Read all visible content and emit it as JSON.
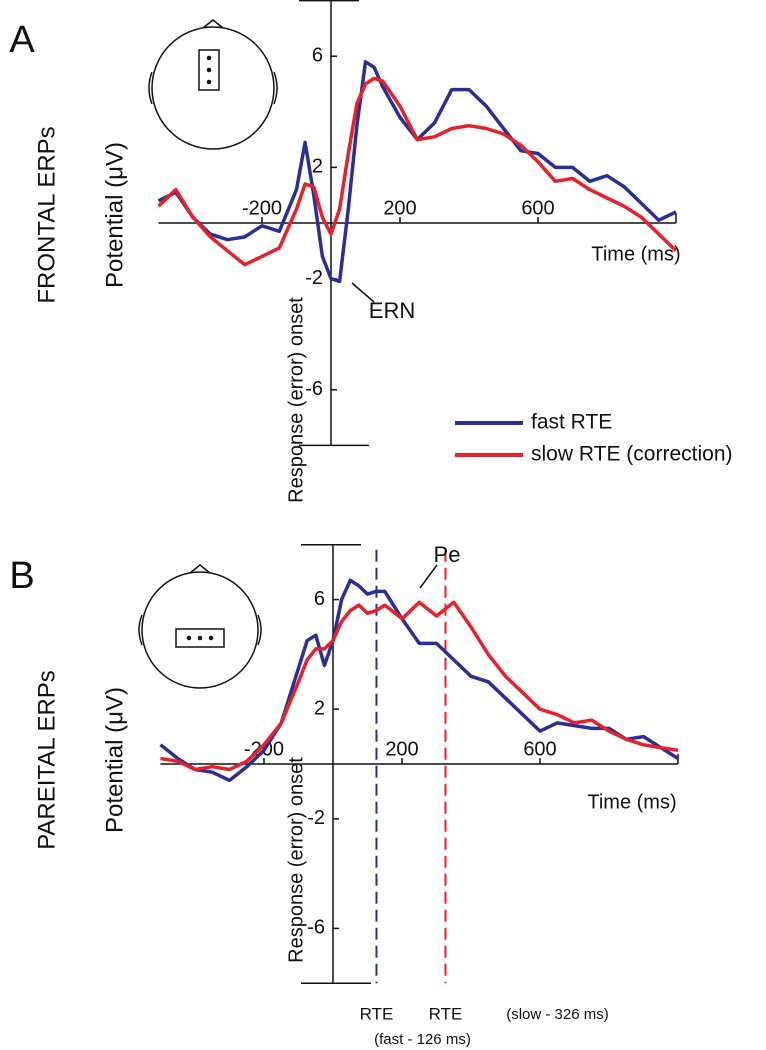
{
  "chart_data": [
    {
      "type": "line",
      "panel": "A",
      "title": "FRONTAL ERPs",
      "ylabel": "Potential (μV)",
      "xlabel": "Time (ms)",
      "onset_label": "Response (error) onset",
      "x": [
        -500,
        -450,
        -400,
        -350,
        -300,
        -250,
        -200,
        -150,
        -100,
        -75,
        -50,
        -25,
        0,
        25,
        50,
        75,
        100,
        125,
        150,
        200,
        250,
        300,
        350,
        400,
        450,
        500,
        550,
        600,
        650,
        700,
        750,
        800,
        850,
        900,
        950,
        1000
      ],
      "series": [
        {
          "name": "fast RTE",
          "color": "#2b2e97",
          "values": [
            0.8,
            1.1,
            0.2,
            -0.4,
            -0.6,
            -0.5,
            -0.1,
            -0.3,
            1.2,
            2.9,
            1.0,
            -1.2,
            -2.0,
            -2.1,
            0.5,
            3.5,
            5.8,
            5.6,
            4.9,
            3.8,
            3.0,
            3.6,
            4.8,
            4.8,
            4.2,
            3.4,
            2.6,
            2.5,
            2.0,
            2.0,
            1.5,
            1.7,
            1.3,
            0.7,
            0.1,
            0.4
          ]
        },
        {
          "name": "slow RTE (correction)",
          "color": "#e8202a",
          "values": [
            0.6,
            1.2,
            0.2,
            -0.5,
            -1.0,
            -1.5,
            -1.2,
            -0.9,
            0.5,
            1.4,
            1.3,
            0.2,
            -0.4,
            0.5,
            2.5,
            4.3,
            5.0,
            5.2,
            5.1,
            4.2,
            3.0,
            3.1,
            3.4,
            3.5,
            3.4,
            3.2,
            2.8,
            2.2,
            1.5,
            1.6,
            1.2,
            0.9,
            0.6,
            0.2,
            -0.4,
            -1.0
          ]
        }
      ],
      "xlim": [
        -500,
        1000
      ],
      "ylim": [
        -8,
        8
      ],
      "xticks": [
        -200,
        200,
        600
      ],
      "yticks": [
        6,
        2,
        -2,
        -6
      ],
      "annotations": [
        "ERN"
      ]
    },
    {
      "type": "line",
      "panel": "B",
      "title": "PAREITAL ERPs",
      "ylabel": "Potential (μV)",
      "xlabel": "Time (ms)",
      "onset_label": "Response (error) onset",
      "x": [
        -500,
        -450,
        -400,
        -350,
        -300,
        -250,
        -200,
        -150,
        -100,
        -75,
        -50,
        -25,
        0,
        25,
        50,
        75,
        100,
        125,
        150,
        200,
        250,
        300,
        350,
        400,
        450,
        500,
        550,
        600,
        650,
        700,
        750,
        800,
        850,
        900,
        950,
        1000
      ],
      "series": [
        {
          "color": "#2b2e97",
          "values": [
            0.7,
            0.2,
            -0.2,
            -0.3,
            -0.6,
            -0.1,
            0.5,
            1.5,
            3.5,
            4.5,
            4.7,
            3.6,
            4.5,
            6.0,
            6.7,
            6.5,
            6.2,
            6.3,
            6.3,
            5.3,
            4.4,
            4.4,
            3.8,
            3.2,
            3.0,
            2.4,
            1.8,
            1.2,
            1.5,
            1.4,
            1.3,
            1.3,
            0.9,
            1.0,
            0.6,
            0.2
          ]
        },
        {
          "color": "#e8202a",
          "values": [
            0.2,
            0.1,
            -0.2,
            -0.1,
            -0.2,
            0.1,
            0.7,
            1.5,
            3.0,
            3.8,
            4.2,
            4.2,
            4.5,
            5.2,
            5.6,
            5.8,
            5.5,
            5.6,
            5.8,
            5.3,
            5.9,
            5.4,
            5.9,
            5.0,
            4.0,
            3.2,
            2.6,
            2.0,
            1.8,
            1.5,
            1.6,
            1.2,
            0.9,
            0.7,
            0.6,
            0.5
          ]
        }
      ],
      "xlim": [
        -500,
        1000
      ],
      "ylim": [
        -8,
        8
      ],
      "xticks": [
        -200,
        200,
        600
      ],
      "yticks": [
        6,
        2,
        -2,
        -6
      ],
      "annotations": [
        "Pe"
      ],
      "markers": [
        {
          "x": 126,
          "color": "#2b2e97",
          "label": "RTE",
          "note": "(fast - 126 ms)"
        },
        {
          "x": 326,
          "color": "#e8202a",
          "label": "RTE",
          "note": "(slow - 326 ms)"
        }
      ]
    }
  ]
}
